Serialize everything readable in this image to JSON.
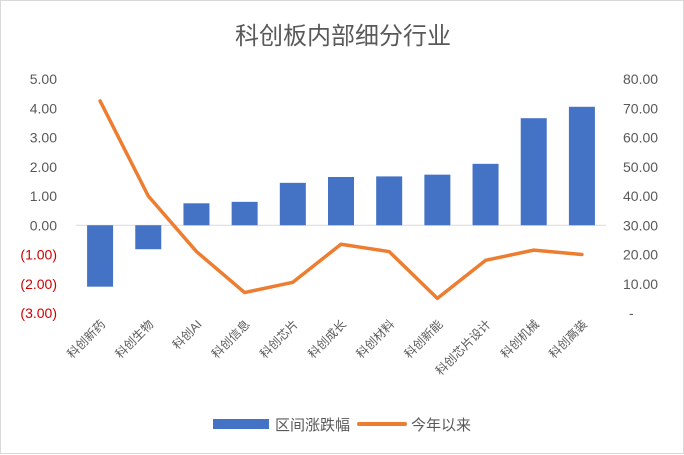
{
  "chart_data": {
    "type": "bar",
    "title": "科创板内部细分行业",
    "categories": [
      "科创新药",
      "科创生物",
      "科创AI",
      "科创信息",
      "科创芯片",
      "科创成长",
      "科创材料",
      "科创新能",
      "科创芯片设计",
      "科创机械",
      "科创高装"
    ],
    "series": [
      {
        "name": "区间涨跌幅",
        "type": "bar",
        "axis": "left",
        "color": "#4472C4",
        "values": [
          -2.1,
          -0.82,
          0.75,
          0.8,
          1.45,
          1.65,
          1.67,
          1.73,
          2.1,
          3.66,
          4.05
        ]
      },
      {
        "name": "今年以来",
        "type": "line",
        "axis": "right",
        "color": "#ED7D31",
        "values": [
          72.5,
          40.0,
          21.0,
          7.0,
          10.5,
          23.5,
          21.0,
          5.0,
          18.0,
          21.5,
          20.0
        ]
      }
    ],
    "y_left": {
      "min": -3,
      "max": 5,
      "step": 1,
      "tick_labels": [
        "(3.00)",
        "(2.00)",
        "(1.00)",
        "0.00",
        "1.00",
        "2.00",
        "3.00",
        "4.00",
        "5.00"
      ]
    },
    "y_right": {
      "min": 0,
      "max": 80,
      "step": 10,
      "tick_labels": [
        "-",
        "10.00",
        "20.00",
        "30.00",
        "40.00",
        "50.00",
        "60.00",
        "70.00",
        "80.00"
      ]
    },
    "negative_tick_color": "#C00000",
    "grid": false,
    "legend_position": "bottom"
  }
}
